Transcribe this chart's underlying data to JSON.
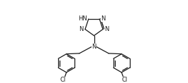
{
  "bg_color": "#ffffff",
  "line_color": "#1a1a1a",
  "text_color": "#1a1a1a",
  "font_size": 6.0,
  "line_width": 0.9,
  "figsize": [
    2.65,
    1.18
  ],
  "dpi": 100,
  "xlim": [
    0,
    10.5
  ],
  "ylim": [
    0,
    4.4
  ]
}
